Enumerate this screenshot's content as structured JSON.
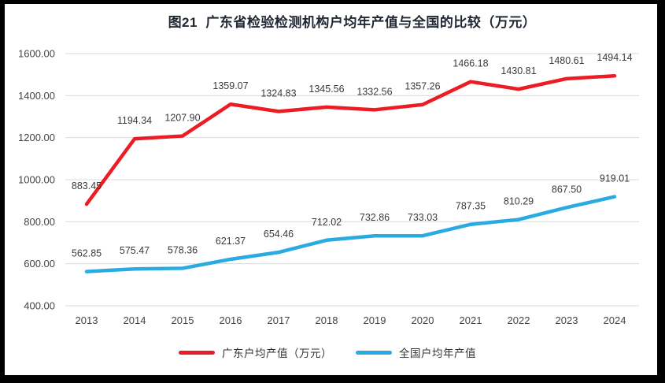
{
  "title": "图21  广东省检验检测机构户均年产值与全国的比较（万元）",
  "chart_data": {
    "type": "line",
    "x": [
      "2013",
      "2014",
      "2015",
      "2016",
      "2017",
      "2018",
      "2019",
      "2020",
      "2021",
      "2022",
      "2023",
      "2024"
    ],
    "series": [
      {
        "name": "广东户均产值（万元）",
        "color": "#ec1c24",
        "values": [
          "883.45",
          "1194.34",
          "1207.90",
          "1359.07",
          "1324.83",
          "1345.56",
          "1332.56",
          "1357.26",
          "1466.18",
          "1430.81",
          "1480.61",
          "1494.14"
        ]
      },
      {
        "name": "全国户均年产值",
        "color": "#29abe2",
        "values": [
          "562.85",
          "575.47",
          "578.36",
          "621.37",
          "654.46",
          "712.02",
          "732.86",
          "733.03",
          "787.35",
          "810.29",
          "867.50",
          "919.01"
        ]
      }
    ],
    "ylim": [
      400,
      1600
    ],
    "ytick_step": 200,
    "ytick_labels": [
      "400.00",
      "600.00",
      "800.00",
      "1000.00",
      "1200.00",
      "1400.00",
      "1600.00"
    ],
    "grid": true,
    "data_labels": true,
    "legend_position": "bottom"
  },
  "colors": {
    "frame": "#000000",
    "background": "#ffffff",
    "gridline": "#d9d9d9",
    "axis_text": "#444444",
    "data_label_text": "#3a3a3a",
    "title_text": "#1f2733"
  }
}
